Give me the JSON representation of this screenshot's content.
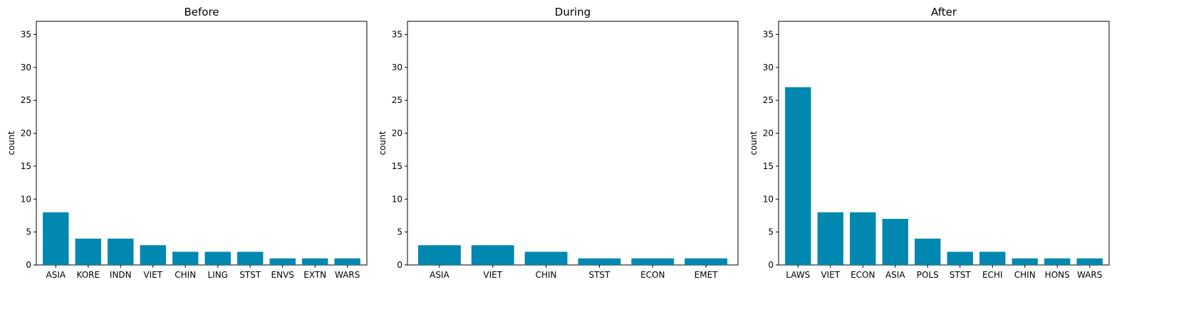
{
  "chart_data": [
    {
      "type": "bar",
      "title": "Before",
      "ylabel": "count",
      "ylim": [
        0,
        37
      ],
      "yticks": [
        0,
        5,
        10,
        15,
        20,
        25,
        30,
        35
      ],
      "categories": [
        "ASIA",
        "KORE",
        "INDN",
        "VIET",
        "CHIN",
        "LING",
        "STST",
        "ENVS",
        "EXTN",
        "WARS"
      ],
      "values": [
        8,
        4,
        4,
        3,
        2,
        2,
        2,
        1,
        1,
        1
      ],
      "color": "#0088b0",
      "grid": false
    },
    {
      "type": "bar",
      "title": "During",
      "ylabel": "count",
      "ylim": [
        0,
        37
      ],
      "yticks": [
        0,
        5,
        10,
        15,
        20,
        25,
        30,
        35
      ],
      "categories": [
        "ASIA",
        "VIET",
        "CHIN",
        "STST",
        "ECON",
        "EMET"
      ],
      "values": [
        3,
        3,
        2,
        1,
        1,
        1
      ],
      "color": "#0088b0",
      "grid": false
    },
    {
      "type": "bar",
      "title": "After",
      "ylabel": "count",
      "ylim": [
        0,
        37
      ],
      "yticks": [
        0,
        5,
        10,
        15,
        20,
        25,
        30,
        35
      ],
      "categories": [
        "LAWS",
        "VIET",
        "ECON",
        "ASIA",
        "POLS",
        "STST",
        "ECHI",
        "CHIN",
        "HONS",
        "WARS"
      ],
      "values": [
        27,
        8,
        8,
        7,
        4,
        2,
        2,
        1,
        1,
        1
      ],
      "color": "#0088b0",
      "grid": false
    }
  ]
}
